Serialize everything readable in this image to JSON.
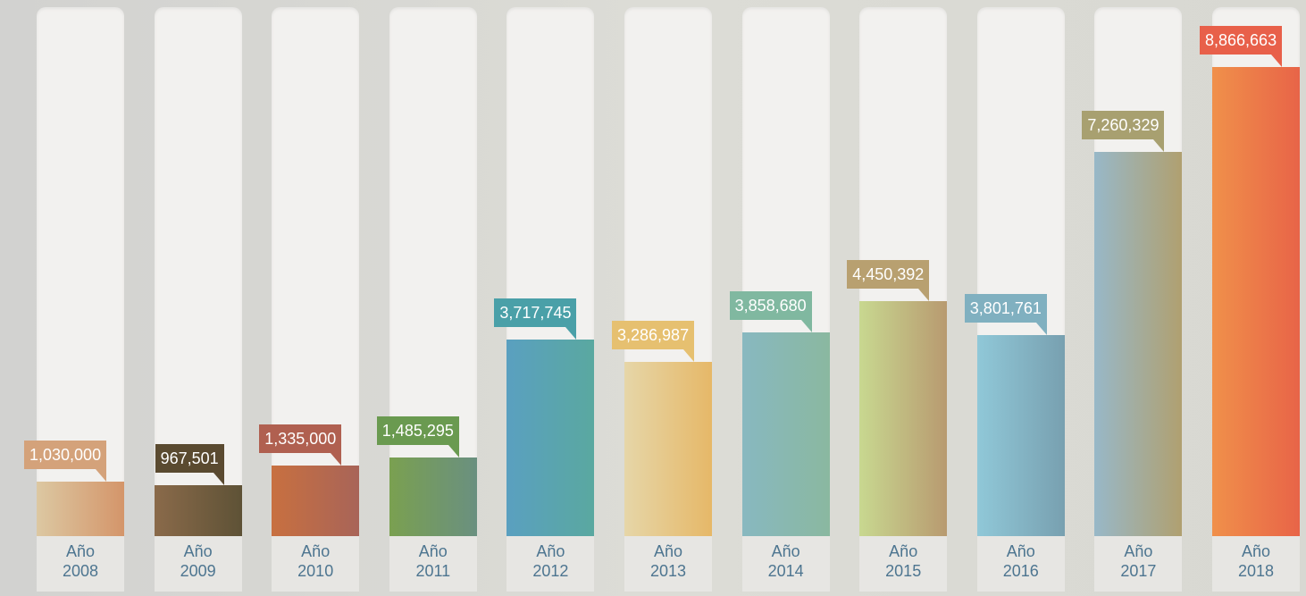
{
  "chart_data": {
    "type": "bar",
    "categories": [
      "Año 2008",
      "Año 2009",
      "Año 2010",
      "Año 2011",
      "Año 2012",
      "Año 2013",
      "Año 2014",
      "Año 2015",
      "Año 2016",
      "Año 2017",
      "Año 2018"
    ],
    "values": [
      1030000,
      967501,
      1335000,
      1485295,
      3717745,
      3286987,
      3858680,
      4450392,
      3801761,
      7260329,
      8866663
    ],
    "value_labels": [
      "1,030,000",
      "967,501",
      "1,335,000",
      "1,485,295",
      "3,717,745",
      "3,286,987",
      "3,858,680",
      "4,450,392",
      "3,801,761",
      "7,260,329",
      "8,866,663"
    ],
    "colors": [
      [
        "#dcc8a2",
        "#d4956a"
      ],
      [
        "#8a6a4a",
        "#5e5236"
      ],
      [
        "#c87040",
        "#a86458"
      ],
      [
        "#7aa050",
        "#6a9080"
      ],
      [
        "#5aa0c0",
        "#5aa8a0"
      ],
      [
        "#e6d6a8",
        "#e6b868"
      ],
      [
        "#88b8c0",
        "#8ab8a0"
      ],
      [
        "#c8d890",
        "#b89a70"
      ],
      [
        "#90c8d8",
        "#78a0b0"
      ],
      [
        "#98b8c8",
        "#b0a070"
      ],
      [
        "#f0904a",
        "#e86448"
      ]
    ],
    "label_colors": [
      "#d4a27a",
      "#5a4a30",
      "#b06050",
      "#6a9a50",
      "#4aa0a8",
      "#e6c070",
      "#80b8a0",
      "#b8a070",
      "#80b0c0",
      "#a8a070",
      "#e8604a"
    ],
    "ylim": [
      0,
      10000000
    ]
  }
}
